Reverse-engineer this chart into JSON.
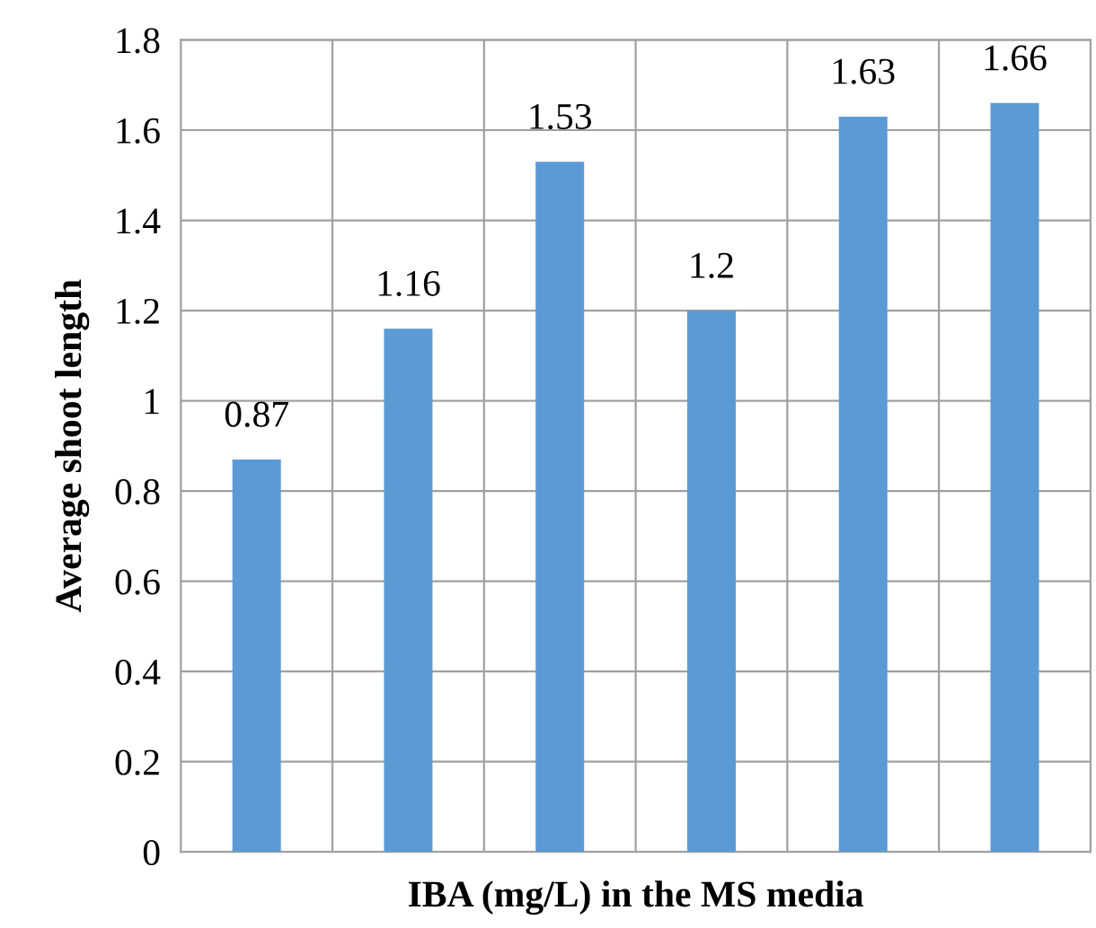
{
  "chart_data": {
    "type": "bar",
    "xlabel": "IBA (mg/L) in the MS media",
    "ylabel": "Average shoot length",
    "categories": [
      null,
      null,
      null,
      null,
      null,
      null
    ],
    "values": [
      0.87,
      1.16,
      1.53,
      1.2,
      1.63,
      1.66
    ],
    "value_labels": [
      "0.87",
      "1.16",
      "1.53",
      "1.2",
      "1.63",
      "1.66"
    ],
    "color": "#5b9bd5",
    "ylim": [
      0,
      1.8
    ],
    "yticks": [
      0,
      0.2,
      0.4,
      0.6,
      0.8,
      1,
      1.2,
      1.4,
      1.6,
      1.8
    ],
    "grid": true
  }
}
